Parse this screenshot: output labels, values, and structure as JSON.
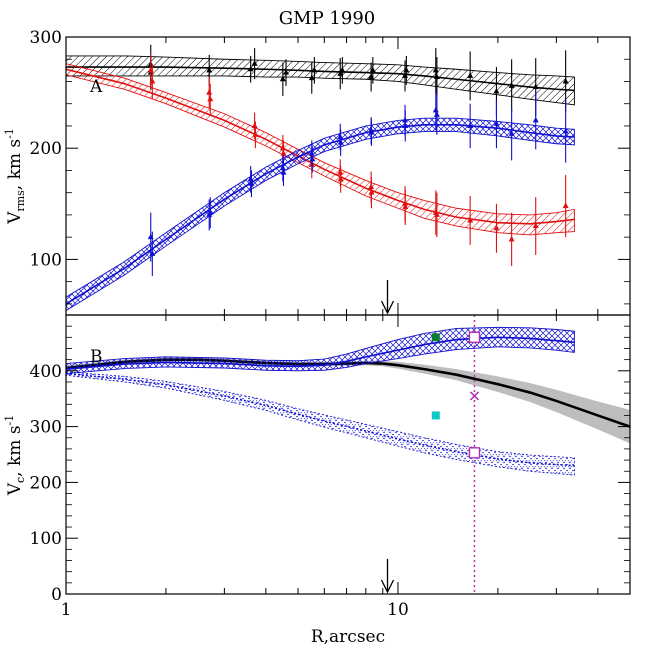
{
  "colors": {
    "black": "#000000",
    "red": "#e01010",
    "blue": "#1010d0",
    "gray_band": "#bdbdbd",
    "magenta": "#b030b0",
    "green": "#107a30",
    "cyan": "#10c8c8"
  },
  "chart_data": [
    {
      "type": "line",
      "title": "GMP 1990",
      "panel_label": "A",
      "xlabel": "",
      "ylabel_main": "V",
      "ylabel_sub": "rms",
      "ylabel_unit": ", km s",
      "ylabel_sup": "-1",
      "x_scale": "log",
      "xlim": [
        1,
        50
      ],
      "ylim": [
        50,
        300
      ],
      "y_ticks": [
        100,
        200,
        300
      ],
      "y_tick_labels": [
        "100",
        "200",
        "300"
      ],
      "arrow_marker_x": 9.3,
      "series": [
        {
          "color": "black",
          "model_x": [
            1,
            1.5,
            2,
            3,
            4,
            5,
            6,
            8,
            10,
            12,
            15,
            20,
            25,
            30,
            34
          ],
          "model_y": [
            273,
            273,
            273,
            272,
            271,
            270,
            269,
            268,
            267,
            265,
            262,
            258,
            255,
            253,
            252
          ],
          "band_upper": [
            283,
            283,
            282,
            280,
            279,
            278,
            277,
            276,
            275,
            273,
            271,
            268,
            266,
            265,
            264
          ],
          "band_lower": [
            265,
            265,
            265,
            265,
            264,
            264,
            263,
            262,
            260,
            257,
            253,
            248,
            244,
            241,
            239
          ],
          "points_x": [
            1.8,
            1.8,
            2.7,
            3.6,
            3.7,
            4.5,
            4.6,
            5.5,
            5.6,
            6.7,
            6.8,
            8.3,
            8.4,
            10.5,
            10.6,
            13.0,
            13.1,
            16.5,
            19.8,
            22.0,
            26.0,
            32.0
          ],
          "points_y": [
            275,
            268,
            270,
            271,
            276,
            262,
            268,
            263,
            270,
            267,
            270,
            264,
            270,
            265,
            270,
            270,
            264,
            265,
            251,
            256,
            255,
            260
          ],
          "errors": [
            18,
            15,
            14,
            12,
            14,
            15,
            12,
            14,
            12,
            14,
            12,
            13,
            12,
            14,
            13,
            20,
            18,
            22,
            22,
            24,
            26,
            28
          ]
        },
        {
          "color": "red",
          "model_x": [
            1,
            1.5,
            2,
            3,
            4,
            5,
            6,
            8,
            10,
            12,
            15,
            20,
            25,
            30,
            34
          ],
          "model_y": [
            271,
            258,
            245,
            225,
            208,
            193,
            181,
            164,
            153,
            145,
            138,
            133,
            132,
            134,
            136
          ],
          "band_upper": [
            276,
            263,
            250,
            231,
            214,
            199,
            187,
            171,
            160,
            153,
            146,
            141,
            140,
            142,
            145
          ],
          "band_lower": [
            266,
            253,
            240,
            219,
            202,
            187,
            175,
            157,
            146,
            137,
            130,
            124,
            122,
            124,
            125
          ],
          "points_x": [
            1.8,
            1.82,
            2.7,
            2.72,
            3.7,
            3.72,
            4.5,
            4.52,
            5.5,
            6.7,
            6.72,
            8.3,
            8.32,
            10.5,
            10.52,
            13.0,
            13.1,
            16.5,
            19.8,
            22.0,
            26.0,
            32.0
          ],
          "points_y": [
            270,
            260,
            250,
            244,
            220,
            212,
            200,
            195,
            185,
            178,
            172,
            165,
            160,
            150,
            147,
            142,
            140,
            135,
            128,
            118,
            130,
            148
          ],
          "errors": [
            16,
            16,
            14,
            14,
            12,
            12,
            12,
            12,
            12,
            12,
            12,
            14,
            14,
            16,
            16,
            20,
            20,
            22,
            22,
            24,
            26,
            28
          ]
        },
        {
          "color": "blue",
          "model_x": [
            1,
            1.5,
            2,
            3,
            4,
            5,
            6,
            8,
            10,
            12,
            15,
            20,
            25,
            30,
            34
          ],
          "model_y": [
            60,
            92,
            118,
            154,
            177,
            192,
            203,
            214,
            219,
            221,
            221,
            218,
            214,
            211,
            210
          ],
          "band_upper": [
            66,
            98,
            124,
            160,
            183,
            198,
            209,
            220,
            225,
            227,
            227,
            224,
            221,
            218,
            217
          ],
          "band_lower": [
            54,
            86,
            112,
            148,
            171,
            186,
            197,
            208,
            213,
            215,
            215,
            211,
            207,
            204,
            203
          ],
          "points_x": [
            1.8,
            1.82,
            2.7,
            2.72,
            3.6,
            3.62,
            4.5,
            4.52,
            5.5,
            5.52,
            6.7,
            6.72,
            8.3,
            8.32,
            10.5,
            10.52,
            13.0,
            13.1,
            16.5,
            19.8,
            22.0,
            26.0,
            32.0
          ],
          "points_y": [
            120,
            105,
            140,
            142,
            172,
            168,
            182,
            178,
            195,
            190,
            210,
            205,
            216,
            214,
            225,
            220,
            234,
            230,
            220,
            222,
            213,
            225,
            215
          ],
          "errors": [
            22,
            20,
            14,
            14,
            12,
            12,
            12,
            12,
            12,
            12,
            12,
            12,
            12,
            12,
            14,
            14,
            18,
            18,
            20,
            22,
            24,
            26,
            28
          ]
        }
      ]
    },
    {
      "type": "line",
      "panel_label": "B",
      "xlabel": "R,arcsec",
      "ylabel_main": "V",
      "ylabel_sub": "c",
      "ylabel_unit": ", km s",
      "ylabel_sup": "-1",
      "x_scale": "log",
      "xlim": [
        1,
        50
      ],
      "ylim": [
        0,
        500
      ],
      "y_ticks": [
        0,
        100,
        200,
        300,
        400,
        500
      ],
      "y_tick_labels": [
        "0",
        "100",
        "200",
        "300",
        "400",
        "500"
      ],
      "x_ticks": [
        1,
        10
      ],
      "x_tick_labels": [
        "1",
        "10"
      ],
      "arrow_marker_x": 9.3,
      "vertical_line_x": 17.0,
      "series": [
        {
          "color": "black",
          "style": "solid",
          "x": [
            1,
            1.5,
            2,
            2.5,
            3,
            4,
            5,
            6,
            7,
            8,
            9,
            10,
            12,
            15,
            20,
            25,
            30,
            40,
            50
          ],
          "y": [
            405,
            416,
            420,
            420,
            418,
            414,
            412,
            412,
            413,
            414,
            413,
            410,
            403,
            393,
            376,
            361,
            346,
            320,
            300
          ],
          "band_upper": [
            410,
            420,
            424,
            424,
            422,
            418,
            416,
            416,
            417,
            418,
            418,
            416,
            411,
            403,
            390,
            378,
            366,
            345,
            330
          ],
          "band_lower": [
            400,
            412,
            416,
            416,
            414,
            410,
            408,
            408,
            409,
            410,
            408,
            404,
            395,
            383,
            362,
            344,
            326,
            295,
            270
          ]
        },
        {
          "color": "blue",
          "style": "solid",
          "x": [
            1,
            1.5,
            2,
            3,
            4,
            5,
            6,
            7,
            8,
            10,
            12,
            15,
            20,
            25,
            30,
            34
          ],
          "y": [
            403,
            412,
            415,
            413,
            409,
            408,
            410,
            417,
            425,
            437,
            447,
            456,
            460,
            458,
            454,
            451
          ],
          "band_upper": [
            413,
            422,
            425,
            423,
            419,
            418,
            421,
            430,
            440,
            456,
            467,
            476,
            478,
            477,
            474,
            471
          ],
          "band_lower": [
            395,
            404,
            407,
            405,
            401,
            400,
            401,
            406,
            413,
            422,
            430,
            438,
            443,
            441,
            437,
            433
          ]
        },
        {
          "color": "blue",
          "style": "dotted",
          "x": [
            1,
            1.5,
            2,
            3,
            4,
            5,
            6,
            8,
            10,
            12,
            15,
            20,
            25,
            30,
            34
          ],
          "y": [
            395,
            385,
            375,
            355,
            338,
            322,
            310,
            292,
            278,
            267,
            255,
            242,
            235,
            232,
            230
          ],
          "band_upper": [
            398,
            390,
            381,
            363,
            347,
            332,
            321,
            304,
            291,
            280,
            268,
            255,
            249,
            246,
            244
          ],
          "band_lower": [
            392,
            380,
            369,
            347,
            329,
            312,
            299,
            280,
            265,
            253,
            241,
            228,
            220,
            216,
            213
          ]
        }
      ],
      "markers": [
        {
          "shape": "square-filled",
          "color": "green",
          "x": 13.0,
          "y": 460
        },
        {
          "shape": "square-open",
          "color": "magenta",
          "x": 17.0,
          "y": 460
        },
        {
          "shape": "cross",
          "color": "magenta",
          "x": 17.0,
          "y": 355
        },
        {
          "shape": "square-filled",
          "color": "cyan",
          "x": 13.0,
          "y": 320
        },
        {
          "shape": "square-open",
          "color": "magenta",
          "x": 17.0,
          "y": 253
        }
      ]
    }
  ]
}
